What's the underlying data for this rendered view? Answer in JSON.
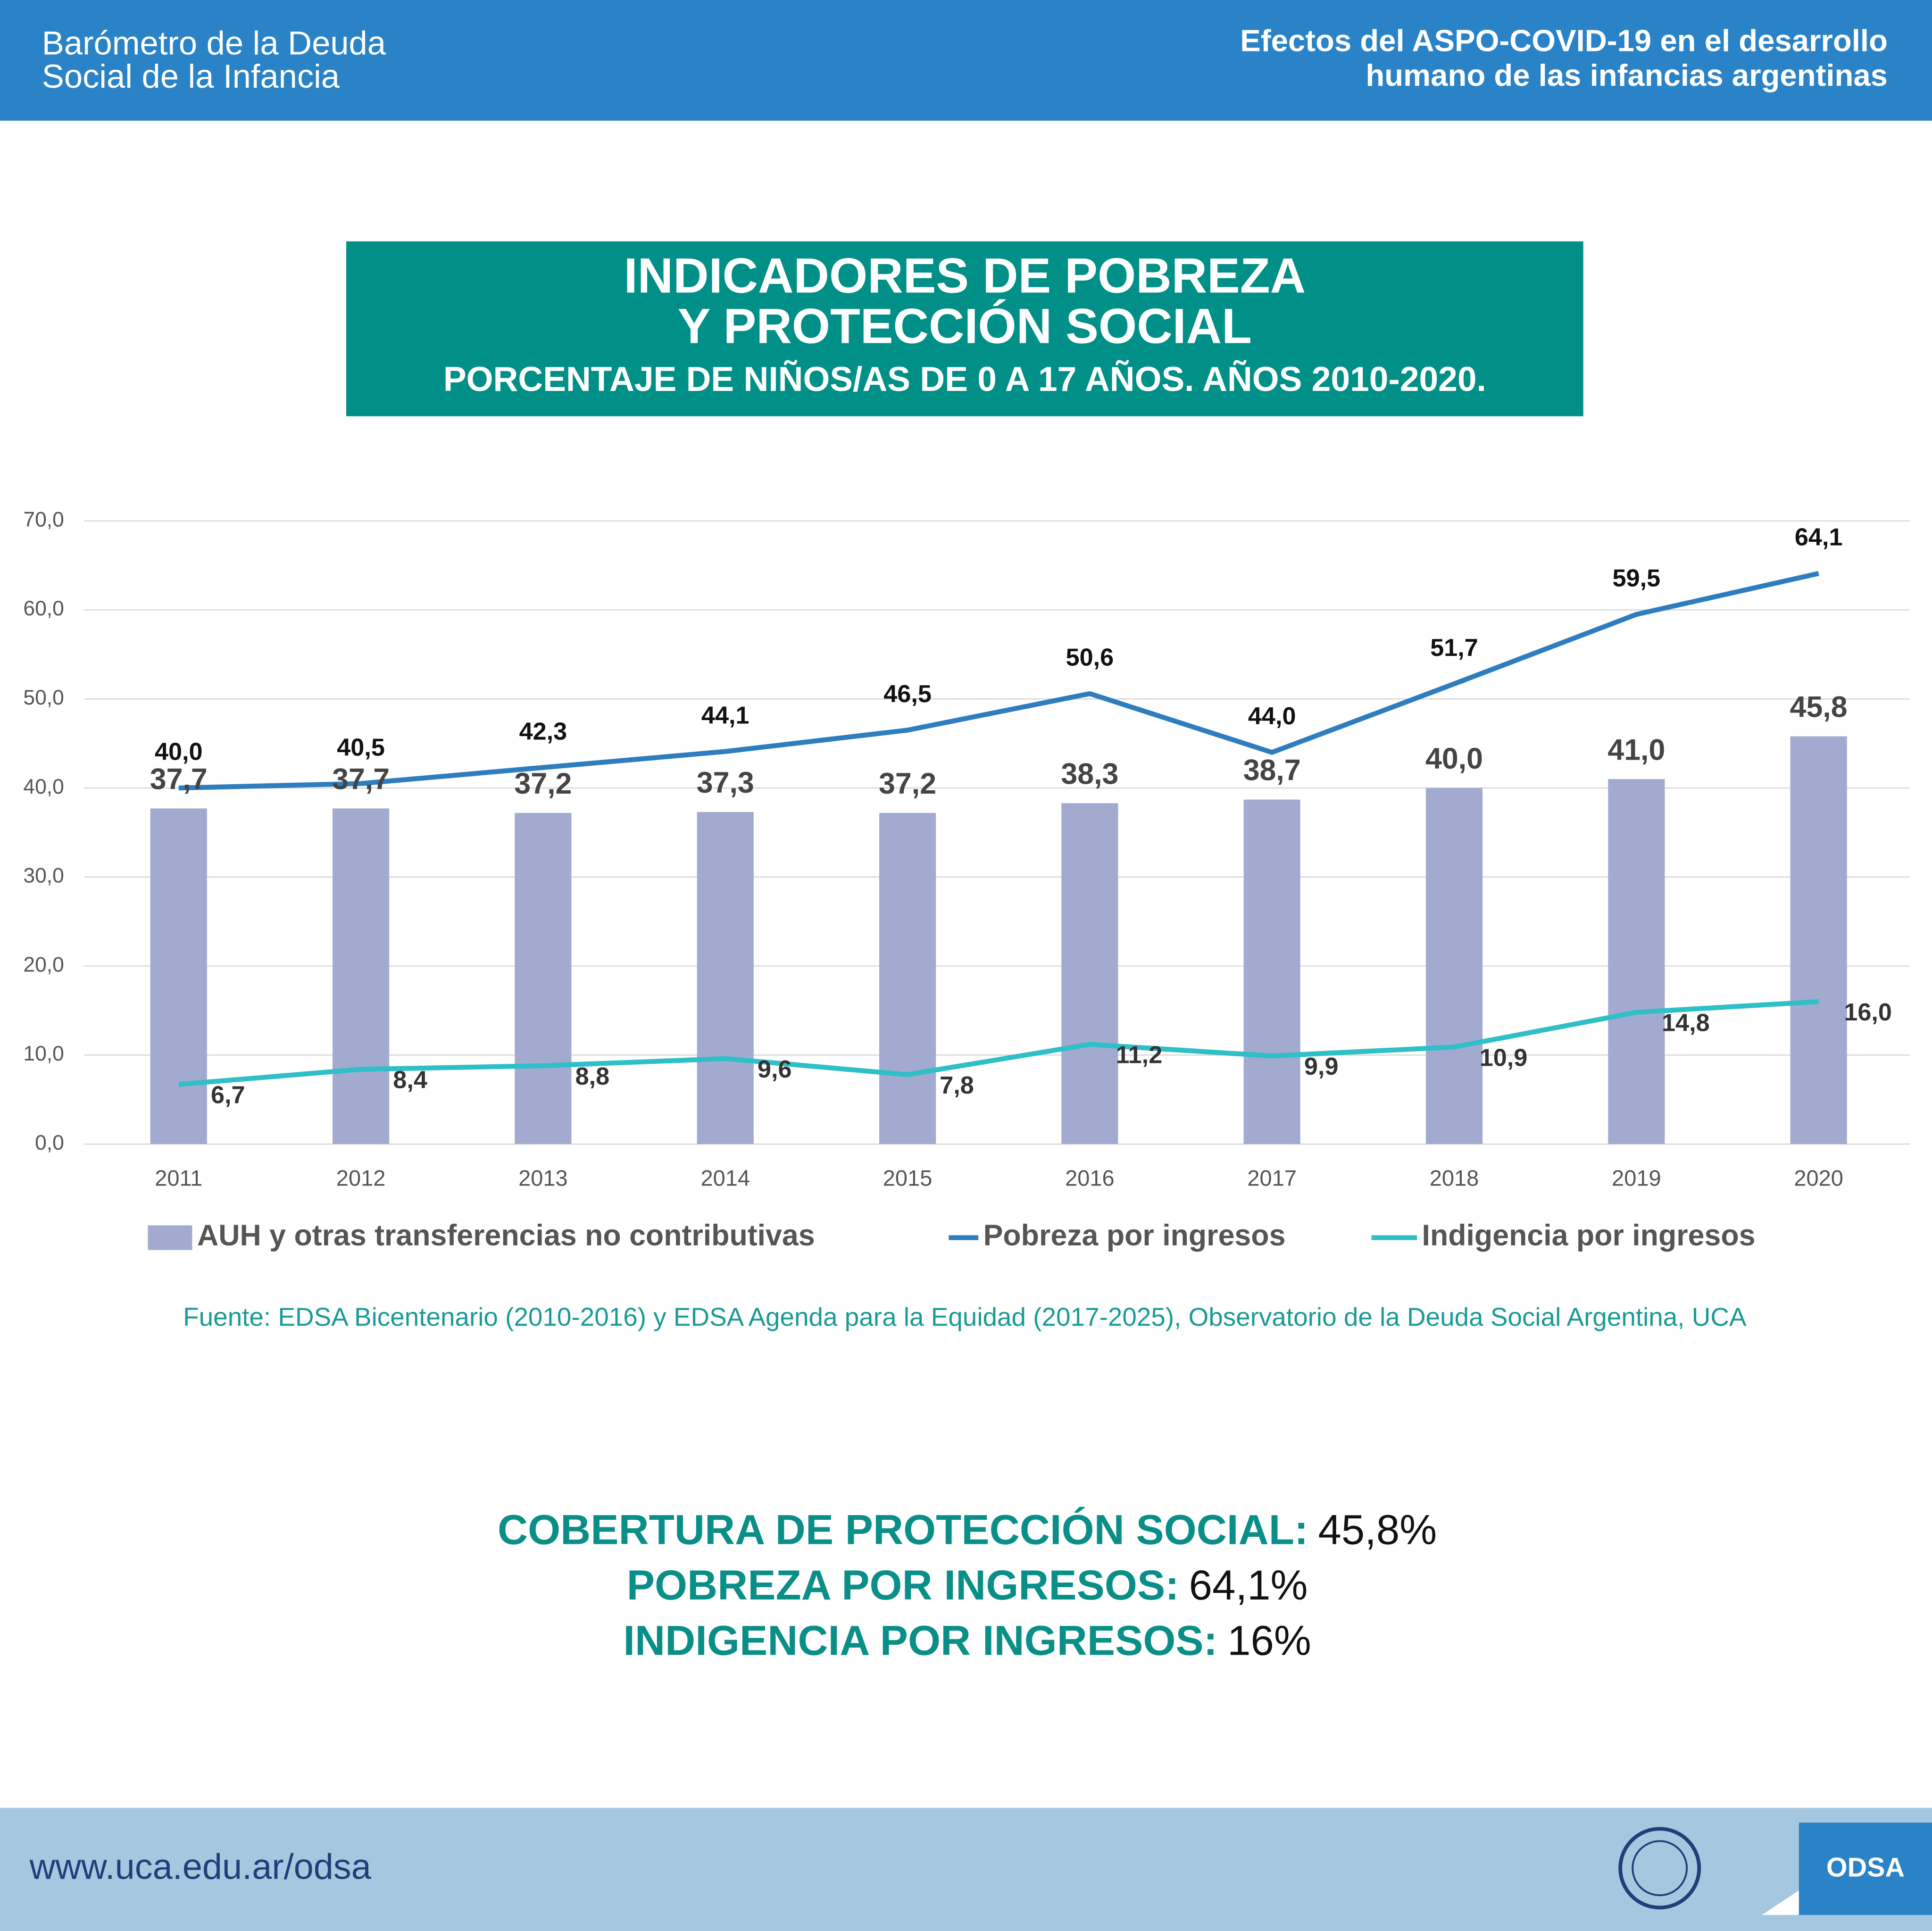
{
  "header": {
    "left": [
      "Barómetro de la Deuda",
      "Social de la Infancia"
    ],
    "right": [
      "Efectos del ASPO-COVID-19 en el desarrollo",
      "humano de las infancias argentinas"
    ]
  },
  "chart_data": {
    "type": "combo",
    "title": [
      "INDICADORES DE POBREZA",
      "Y PROTECCIÓN SOCIAL"
    ],
    "subtitle": "PORCENTAJE DE NIÑOS/AS DE 0 A 17 AÑOS. AÑOS 2010-2020.",
    "categories": [
      "2011",
      "2012",
      "2013",
      "2014",
      "2015",
      "2016",
      "2017",
      "2018",
      "2019",
      "2020"
    ],
    "series": [
      {
        "name": "AUH y otras transferencias no contributivas",
        "type": "bar",
        "color": "#a2aad0",
        "values": [
          37.7,
          37.7,
          37.2,
          37.3,
          37.2,
          38.3,
          38.7,
          40.0,
          41.0,
          45.8
        ],
        "value_labels": [
          "37,7",
          "37,7",
          "37,2",
          "37,3",
          "37,2",
          "38,3",
          "38,7",
          "40,0",
          "41,0",
          "45,8"
        ]
      },
      {
        "name": "Pobreza por ingresos",
        "type": "line",
        "color": "#2e7dbf",
        "values": [
          40.0,
          40.5,
          42.3,
          44.1,
          46.5,
          50.6,
          44.0,
          51.7,
          59.5,
          64.1
        ],
        "value_labels": [
          "40,0",
          "40,5",
          "42,3",
          "44,1",
          "46,5",
          "50,6",
          "44,0",
          "51,7",
          "59,5",
          "64,1"
        ]
      },
      {
        "name": "Indigencia por ingresos",
        "type": "line",
        "color": "#2ebfc7",
        "values": [
          6.7,
          8.4,
          8.8,
          9.6,
          7.8,
          11.2,
          9.9,
          10.9,
          14.8,
          16.0
        ],
        "value_labels": [
          "6,7",
          "8,4",
          "8,8",
          "9,6",
          "7,8",
          "11,2",
          "9,9",
          "10,9",
          "14,8",
          "16,0"
        ]
      }
    ],
    "ylim": [
      0,
      70
    ],
    "yticks": [
      {
        "value": 0,
        "label": "0,0"
      },
      {
        "value": 10,
        "label": "10,0"
      },
      {
        "value": 20,
        "label": "20,0"
      },
      {
        "value": 30,
        "label": "30,0"
      },
      {
        "value": 40,
        "label": "40,0"
      },
      {
        "value": 50,
        "label": "50,0"
      },
      {
        "value": 60,
        "label": "60,0"
      },
      {
        "value": 70,
        "label": "70,0"
      }
    ],
    "grid": true,
    "legend": "bottom"
  },
  "source": "Fuente: EDSA Bicentenario (2010-2016) y EDSA Agenda para la Equidad (2017-2025), Observatorio de la Deuda Social Argentina, UCA",
  "summary": [
    {
      "label": "COBERTURA DE PROTECCIÓN SOCIAL:",
      "value": "45,8%"
    },
    {
      "label": "POBREZA POR INGRESOS:",
      "value": "64,1%"
    },
    {
      "label": "INDIGENCIA POR INGRESOS:",
      "value": "16%"
    }
  ],
  "footer": {
    "url": "www.uca.edu.ar/odsa",
    "logo": "ODSA"
  }
}
